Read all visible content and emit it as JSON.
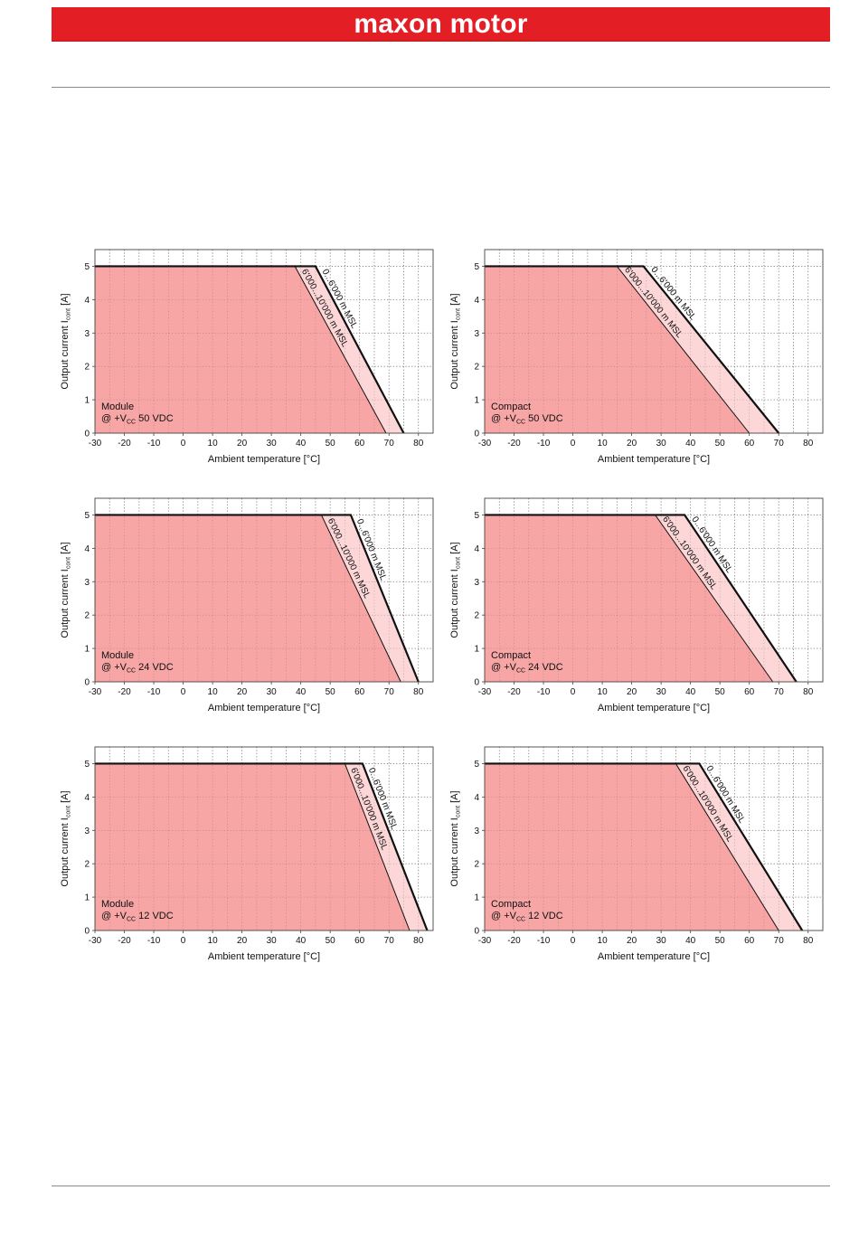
{
  "header": {
    "brand": "maxon motor"
  },
  "colors": {
    "banner": "#e31e25",
    "fill_dark": "#f8a5a6",
    "fill_light": "#fdd7d7",
    "line": "#111111"
  },
  "chart_data": [
    {
      "type": "area",
      "xlabel": "Ambient temperature [°C]",
      "ylabel_main": "Output current I",
      "ylabel_sub": "cont",
      "ylabel_unit": " [A]",
      "xlim": [
        -30,
        85
      ],
      "ylim": [
        0,
        5.5
      ],
      "xticks": [
        -30,
        -20,
        -10,
        0,
        10,
        20,
        30,
        40,
        50,
        60,
        70,
        80
      ],
      "yticks": [
        0,
        1,
        2,
        3,
        4,
        5
      ],
      "grid": true,
      "annotation_line1": "Module",
      "annotation_line2_pre": "@ +V",
      "annotation_line2_sub": "CC",
      "annotation_line2_post": " 50 VDC",
      "series": [
        {
          "name": "0...6'000 m MSL",
          "x": [
            -30,
            45,
            75
          ],
          "y": [
            5,
            5,
            0
          ]
        },
        {
          "name": "6'000...10'000 m MSL",
          "x": [
            -30,
            38,
            69
          ],
          "y": [
            5,
            5,
            0
          ]
        }
      ]
    },
    {
      "type": "area",
      "xlabel": "Ambient temperature [°C]",
      "ylabel_main": "Output current I",
      "ylabel_sub": "cont",
      "ylabel_unit": " [A]",
      "xlim": [
        -30,
        85
      ],
      "ylim": [
        0,
        5.5
      ],
      "xticks": [
        -30,
        -20,
        -10,
        0,
        10,
        20,
        30,
        40,
        50,
        60,
        70,
        80
      ],
      "yticks": [
        0,
        1,
        2,
        3,
        4,
        5
      ],
      "grid": true,
      "annotation_line1": "Compact",
      "annotation_line2_pre": "@ +V",
      "annotation_line2_sub": "CC",
      "annotation_line2_post": " 50 VDC",
      "series": [
        {
          "name": "0...6'000 m MSL",
          "x": [
            -30,
            24,
            70
          ],
          "y": [
            5,
            5,
            0
          ]
        },
        {
          "name": "6'000...10'000 m MSL",
          "x": [
            -30,
            15,
            60
          ],
          "y": [
            5,
            5,
            0
          ]
        }
      ]
    },
    {
      "type": "area",
      "xlabel": "Ambient temperature [°C]",
      "ylabel_main": "Output current I",
      "ylabel_sub": "cont",
      "ylabel_unit": " [A]",
      "xlim": [
        -30,
        85
      ],
      "ylim": [
        0,
        5.5
      ],
      "xticks": [
        -30,
        -20,
        -10,
        0,
        10,
        20,
        30,
        40,
        50,
        60,
        70,
        80
      ],
      "yticks": [
        0,
        1,
        2,
        3,
        4,
        5
      ],
      "grid": true,
      "annotation_line1": "Module",
      "annotation_line2_pre": "@ +V",
      "annotation_line2_sub": "CC",
      "annotation_line2_post": " 24 VDC",
      "series": [
        {
          "name": "0...6'000 m MSL",
          "x": [
            -30,
            57,
            80
          ],
          "y": [
            5,
            5,
            0
          ]
        },
        {
          "name": "6'000...10'000 m MSL",
          "x": [
            -30,
            47,
            74
          ],
          "y": [
            5,
            5,
            0
          ]
        }
      ]
    },
    {
      "type": "area",
      "xlabel": "Ambient temperature [°C]",
      "ylabel_main": "Output current I",
      "ylabel_sub": "cont",
      "ylabel_unit": " [A]",
      "xlim": [
        -30,
        85
      ],
      "ylim": [
        0,
        5.5
      ],
      "xticks": [
        -30,
        -20,
        -10,
        0,
        10,
        20,
        30,
        40,
        50,
        60,
        70,
        80
      ],
      "yticks": [
        0,
        1,
        2,
        3,
        4,
        5
      ],
      "grid": true,
      "annotation_line1": "Compact",
      "annotation_line2_pre": "@ +V",
      "annotation_line2_sub": "CC",
      "annotation_line2_post": " 24 VDC",
      "series": [
        {
          "name": "0...6'000 m MSL",
          "x": [
            -30,
            38,
            76
          ],
          "y": [
            5,
            5,
            0
          ]
        },
        {
          "name": "6'000...10'000 m MSL",
          "x": [
            -30,
            28,
            68
          ],
          "y": [
            5,
            5,
            0
          ]
        }
      ]
    },
    {
      "type": "area",
      "xlabel": "Ambient temperature [°C]",
      "ylabel_main": "Output current I",
      "ylabel_sub": "cont",
      "ylabel_unit": " [A]",
      "xlim": [
        -30,
        85
      ],
      "ylim": [
        0,
        5.5
      ],
      "xticks": [
        -30,
        -20,
        -10,
        0,
        10,
        20,
        30,
        40,
        50,
        60,
        70,
        80
      ],
      "yticks": [
        0,
        1,
        2,
        3,
        4,
        5
      ],
      "grid": true,
      "annotation_line1": "Module",
      "annotation_line2_pre": "@ +V",
      "annotation_line2_sub": "CC",
      "annotation_line2_post": " 12 VDC",
      "series": [
        {
          "name": "0...6'000 m MSL",
          "x": [
            -30,
            61,
            83
          ],
          "y": [
            5,
            5,
            0
          ]
        },
        {
          "name": "6'000...10'000 m MSL",
          "x": [
            -30,
            55,
            77
          ],
          "y": [
            5,
            5,
            0
          ]
        }
      ]
    },
    {
      "type": "area",
      "xlabel": "Ambient temperature [°C]",
      "ylabel_main": "Output current I",
      "ylabel_sub": "cont",
      "ylabel_unit": " [A]",
      "xlim": [
        -30,
        85
      ],
      "ylim": [
        0,
        5.5
      ],
      "xticks": [
        -30,
        -20,
        -10,
        0,
        10,
        20,
        30,
        40,
        50,
        60,
        70,
        80
      ],
      "yticks": [
        0,
        1,
        2,
        3,
        4,
        5
      ],
      "grid": true,
      "annotation_line1": "Compact",
      "annotation_line2_pre": "@ +V",
      "annotation_line2_sub": "CC",
      "annotation_line2_post": " 12 VDC",
      "series": [
        {
          "name": "0...6'000 m MSL",
          "x": [
            -30,
            43,
            78
          ],
          "y": [
            5,
            5,
            0
          ]
        },
        {
          "name": "6'000...10'000 m MSL",
          "x": [
            -30,
            35,
            70
          ],
          "y": [
            5,
            5,
            0
          ]
        }
      ]
    }
  ]
}
